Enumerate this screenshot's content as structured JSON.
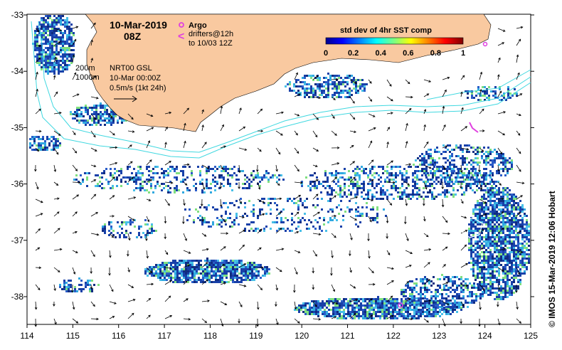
{
  "map": {
    "date": "10-Mar-2019",
    "hour": "08Z",
    "legend": {
      "argo_label": "Argo",
      "drifters_label": "drifters@12h",
      "drifters_sub": "to 10/03 12Z"
    },
    "contours": {
      "depth1": "200m",
      "depth2": "1000m"
    },
    "current_info": {
      "line1": "NRT00 GSL",
      "line2": "10-Mar 00:00Z",
      "line3": "0.5m/s (1kt 24h)"
    },
    "colorbar": {
      "title": "std dev of 4hr SST comp",
      "ticks": [
        "0",
        "0.2",
        "0.4",
        "0.6",
        "0.8",
        "1"
      ]
    },
    "lon_labels": [
      "114",
      "115",
      "116",
      "117",
      "118",
      "119",
      "120",
      "121",
      "122",
      "123",
      "124",
      "125"
    ],
    "lat_labels": [
      "-33",
      "-34",
      "-35",
      "-36",
      "-37",
      "-38"
    ],
    "credit": "© IMOS 15-Mar-2019 12:06 Hobart",
    "colors": {
      "land": "#F9C9A0",
      "isobath": "#40D8E0",
      "argo": "#E040E0",
      "low_std": "#1840A8",
      "mid_std": "#30A8E0"
    }
  }
}
